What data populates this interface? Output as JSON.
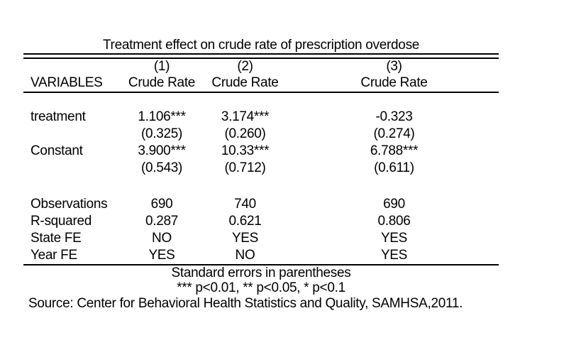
{
  "title": "Treatment effect on crude rate of prescription overdose",
  "table": {
    "column_headers": {
      "variables_label": "VARIABLES",
      "numbers": [
        "(1)",
        "(2)",
        "(3)"
      ],
      "dep_var_labels": [
        "Crude Rate",
        "Crude Rate",
        "Crude Rate"
      ]
    },
    "coef_rows": [
      {
        "label": "treatment",
        "values": [
          "1.106***",
          "3.174***",
          "-0.323"
        ],
        "std_errors": [
          "(0.325)",
          "(0.260)",
          "(0.274)"
        ]
      },
      {
        "label": "Constant",
        "values": [
          "3.900***",
          "10.33***",
          "6.788***"
        ],
        "std_errors": [
          "(0.543)",
          "(0.712)",
          "(0.611)"
        ]
      }
    ],
    "stat_rows": [
      {
        "label": "Observations",
        "values": [
          "690",
          "740",
          "690"
        ]
      },
      {
        "label": "R-squared",
        "values": [
          "0.287",
          "0.621",
          "0.806"
        ]
      },
      {
        "label": "State FE",
        "values": [
          "NO",
          "YES",
          "YES"
        ]
      },
      {
        "label": "Year FE",
        "values": [
          "YES",
          "NO",
          "YES"
        ]
      }
    ],
    "notes": [
      "Standard errors in parentheses",
      "*** p<0.01, ** p<0.05, * p<0.1"
    ]
  },
  "source_line": "Source: Center for Behavioral Health Statistics and Quality, SAMHSA,2011."
}
